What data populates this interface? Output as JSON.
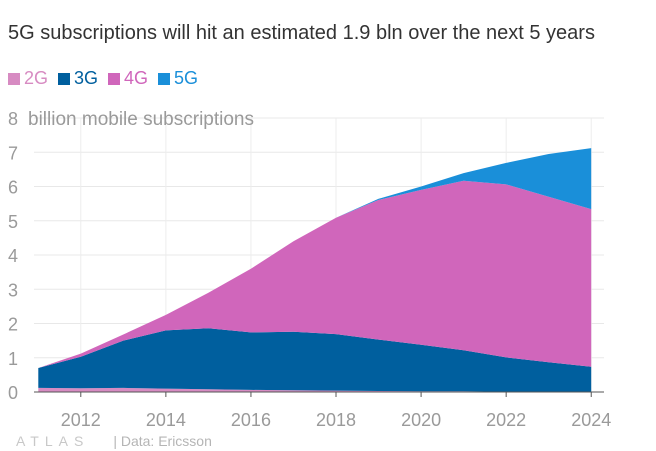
{
  "chart_data": {
    "type": "area",
    "title": "5G subscriptions will hit an estimated 1.9 bln over the next 5 years",
    "ylabel": "billion mobile subscriptions",
    "top_tick_label": "8",
    "x": [
      2011,
      2012,
      2013,
      2014,
      2015,
      2016,
      2017,
      2018,
      2019,
      2020,
      2021,
      2022,
      2023,
      2024
    ],
    "xticks": [
      2012,
      2014,
      2016,
      2018,
      2020,
      2022,
      2024
    ],
    "yticks": [
      0,
      1,
      2,
      3,
      4,
      5,
      6,
      7
    ],
    "xlim": [
      2010.9,
      2024.3
    ],
    "ylim": [
      0,
      8
    ],
    "stacked": true,
    "series": [
      {
        "name": "2G",
        "color": "#d78bc2",
        "values": [
          0.12,
          0.11,
          0.12,
          0.1,
          0.08,
          0.06,
          0.05,
          0.04,
          0.03,
          0.02,
          0.02,
          0.01,
          0.01,
          0.01
        ]
      },
      {
        "name": "3G",
        "color": "#005f9e",
        "values": [
          0.58,
          0.92,
          1.38,
          1.7,
          1.78,
          1.68,
          1.71,
          1.65,
          1.5,
          1.36,
          1.2,
          1.0,
          0.86,
          0.73
        ]
      },
      {
        "name": "4G",
        "color": "#d066bb",
        "values": [
          0.0,
          0.09,
          0.18,
          0.45,
          1.04,
          1.86,
          2.64,
          3.4,
          4.08,
          4.52,
          4.95,
          5.05,
          4.83,
          4.6
        ]
      },
      {
        "name": "5G",
        "color": "#1a8fd9",
        "values": [
          0.0,
          0.0,
          0.0,
          0.0,
          0.0,
          0.0,
          0.0,
          0.0,
          0.03,
          0.1,
          0.22,
          0.63,
          1.25,
          1.78
        ]
      }
    ]
  },
  "footer": {
    "logo": "ATLAS",
    "source": "| Data: Ericsson"
  }
}
